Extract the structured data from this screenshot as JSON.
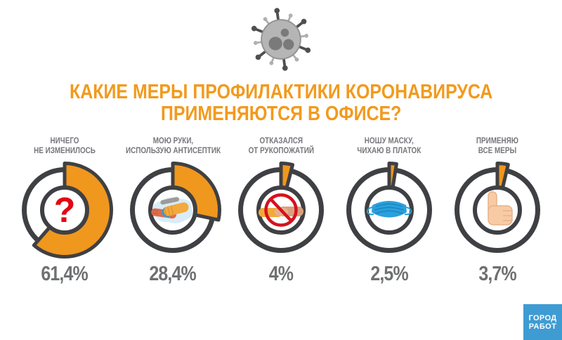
{
  "header": {
    "title_line1": "КАКИЕ МЕРЫ ПРОФИЛАКТИКИ КОРОНАВИРУСА",
    "title_line2": "ПРИМЕНЯЮТСЯ В ОФИСЕ?"
  },
  "chart_data": {
    "type": "pie",
    "variant": "donut-small-multiples",
    "title": "КАКИЕ МЕРЫ ПРОФИЛАКТИКИ КОРОНАВИРУСА ПРИМЕНЯЮТСЯ В ОФИСЕ?",
    "unit": "%",
    "start_angle_deg": 0,
    "direction": "clockwise",
    "categories": [
      "НИЧЕГО НЕ ИЗМЕНИЛОСЬ",
      "МОЮ РУКИ, ИСПОЛЬЗУЮ АНТИСЕПТИК",
      "ОТКАЗАЛСЯ ОТ РУКОПОЖАТИЙ",
      "НОШУ МАСКУ, ЧИХАЮ В ПЛАТОК",
      "ПРИМЕНЯЮ ВСЕ МЕРЫ"
    ],
    "values": [
      61.4,
      28.4,
      4,
      2.5,
      3.7
    ],
    "value_labels": [
      "61,4%",
      "28,4%",
      "4%",
      "2,5%",
      "3,7%"
    ],
    "donuts": [
      {
        "label_line1": "НИЧЕГО",
        "label_line2": "НЕ ИЗМЕНИЛОСЬ",
        "value": 61.4,
        "value_label": "61,4%",
        "icon": "question-mark-icon",
        "icon_glyph": "?"
      },
      {
        "label_line1": "МОЮ РУКИ,",
        "label_line2": "ИСПОЛЬЗУЮ АНТИСЕПТИК",
        "value": 28.4,
        "value_label": "28,4%",
        "icon": "washing-hands-icon"
      },
      {
        "label_line1": "ОТКАЗАЛСЯ",
        "label_line2": "ОТ РУКОПОЖАТИЙ",
        "value": 4,
        "value_label": "4%",
        "icon": "no-handshake-icon"
      },
      {
        "label_line1": "НОШУ МАСКУ,",
        "label_line2": "ЧИХАЮ В ПЛАТОК",
        "value": 2.5,
        "value_label": "2,5%",
        "icon": "face-mask-icon"
      },
      {
        "label_line1": "ПРИМЕНЯЮ",
        "label_line2": "ВСЕ МЕРЫ",
        "value": 3.7,
        "value_label": "3,7%",
        "icon": "thumbs-up-icon"
      }
    ]
  },
  "colors": {
    "accent_orange": "#F0971E",
    "title_orange": "#F29A1D",
    "ring_dark": "#3F4043",
    "label_gray": "#76777B",
    "value_gray": "#6E7072",
    "question_red": "#E30613",
    "prohibition_red": "#D6111E",
    "mask_blue": "#2AA0DC",
    "logo_blue": "#3F9CD3"
  },
  "footer": {
    "logo_line1": "ГОРОД",
    "logo_line2": "РАБОТ"
  }
}
